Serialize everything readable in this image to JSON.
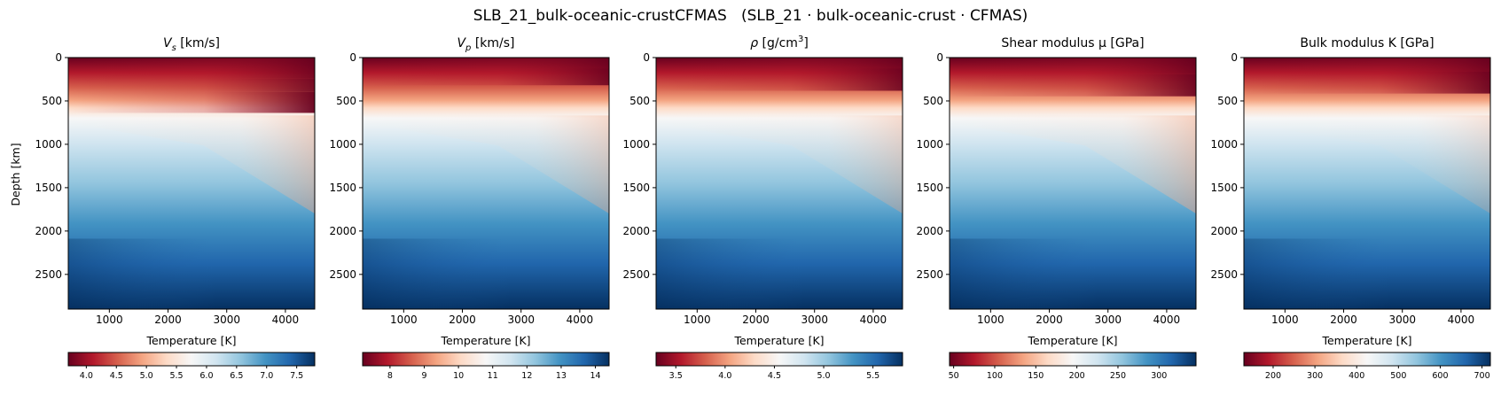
{
  "figure": {
    "suptitle": "SLB_21_bulk-oceanic-crustCFMAS   (SLB_21 · bulk-oceanic-crust · CFMAS)"
  },
  "colors": {
    "colormap": [
      "#67001f",
      "#b2182b",
      "#d6604d",
      "#f4a582",
      "#fddbc7",
      "#f7f7f7",
      "#d1e5f0",
      "#92c5de",
      "#4393c3",
      "#2166ac",
      "#053061"
    ]
  },
  "chart_data": [
    {
      "type": "heatmap",
      "title": "V_s [km/s]",
      "title_main": "V",
      "title_sub": "s",
      "title_rest": " [km/s]",
      "xlabel": "Temperature [K]",
      "ylabel": "Depth [km]",
      "xlim": [
        300,
        4500
      ],
      "ylim": [
        2900,
        0
      ],
      "xticks": [
        1000,
        2000,
        3000,
        4000
      ],
      "yticks": [
        0,
        500,
        1000,
        1500,
        2000,
        2500
      ],
      "colorbar": {
        "range": [
          3.7,
          7.8
        ],
        "ticks": [
          "4.0",
          "4.5",
          "5.0",
          "5.5",
          "6.0",
          "6.5",
          "7.0",
          "7.5"
        ],
        "tick_values": [
          4.0,
          4.5,
          5.0,
          5.5,
          6.0,
          6.5,
          7.0,
          7.5
        ]
      }
    },
    {
      "type": "heatmap",
      "title": "V_p [km/s]",
      "title_main": "V",
      "title_sub": "p",
      "title_rest": " [km/s]",
      "xlabel": "Temperature [K]",
      "xlim": [
        300,
        4500
      ],
      "ylim": [
        2900,
        0
      ],
      "xticks": [
        1000,
        2000,
        3000,
        4000
      ],
      "yticks": [
        0,
        500,
        1000,
        1500,
        2000,
        2500
      ],
      "colorbar": {
        "range": [
          7.2,
          14.4
        ],
        "ticks": [
          "8",
          "9",
          "10",
          "11",
          "12",
          "13",
          "14"
        ],
        "tick_values": [
          8,
          9,
          10,
          11,
          12,
          13,
          14
        ]
      }
    },
    {
      "type": "heatmap",
      "title": "ρ [g/cm3]",
      "title_main": "ρ",
      "title_rest": " [g/cm",
      "title_sup": "3",
      "title_close": "]",
      "xlabel": "Temperature [K]",
      "xlim": [
        300,
        4500
      ],
      "ylim": [
        2900,
        0
      ],
      "xticks": [
        1000,
        2000,
        3000,
        4000
      ],
      "yticks": [
        0,
        500,
        1000,
        1500,
        2000,
        2500
      ],
      "colorbar": {
        "range": [
          3.3,
          5.8
        ],
        "ticks": [
          "3.5",
          "4.0",
          "4.5",
          "5.0",
          "5.5"
        ],
        "tick_values": [
          3.5,
          4.0,
          4.5,
          5.0,
          5.5
        ]
      }
    },
    {
      "type": "heatmap",
      "title": "Shear modulus μ [GPa]",
      "title_main": "Shear modulus μ [GPa]",
      "xlabel": "Temperature [K]",
      "xlim": [
        300,
        4500
      ],
      "ylim": [
        2900,
        0
      ],
      "xticks": [
        1000,
        2000,
        3000,
        4000
      ],
      "yticks": [
        0,
        500,
        1000,
        1500,
        2000,
        2500
      ],
      "colorbar": {
        "range": [
          45,
          345
        ],
        "ticks": [
          "50",
          "100",
          "150",
          "200",
          "250",
          "300"
        ],
        "tick_values": [
          50,
          100,
          150,
          200,
          250,
          300
        ]
      }
    },
    {
      "type": "heatmap",
      "title": "Bulk modulus K [GPa]",
      "title_main": "Bulk modulus K [GPa]",
      "xlabel": "Temperature [K]",
      "xlim": [
        300,
        4500
      ],
      "ylim": [
        2900,
        0
      ],
      "xticks": [
        1000,
        2000,
        3000,
        4000
      ],
      "yticks": [
        0,
        500,
        1000,
        1500,
        2000,
        2500
      ],
      "colorbar": {
        "range": [
          130,
          720
        ],
        "ticks": [
          "200",
          "300",
          "400",
          "500",
          "600",
          "700"
        ],
        "tick_values": [
          200,
          300,
          400,
          500,
          600,
          700
        ]
      }
    }
  ]
}
